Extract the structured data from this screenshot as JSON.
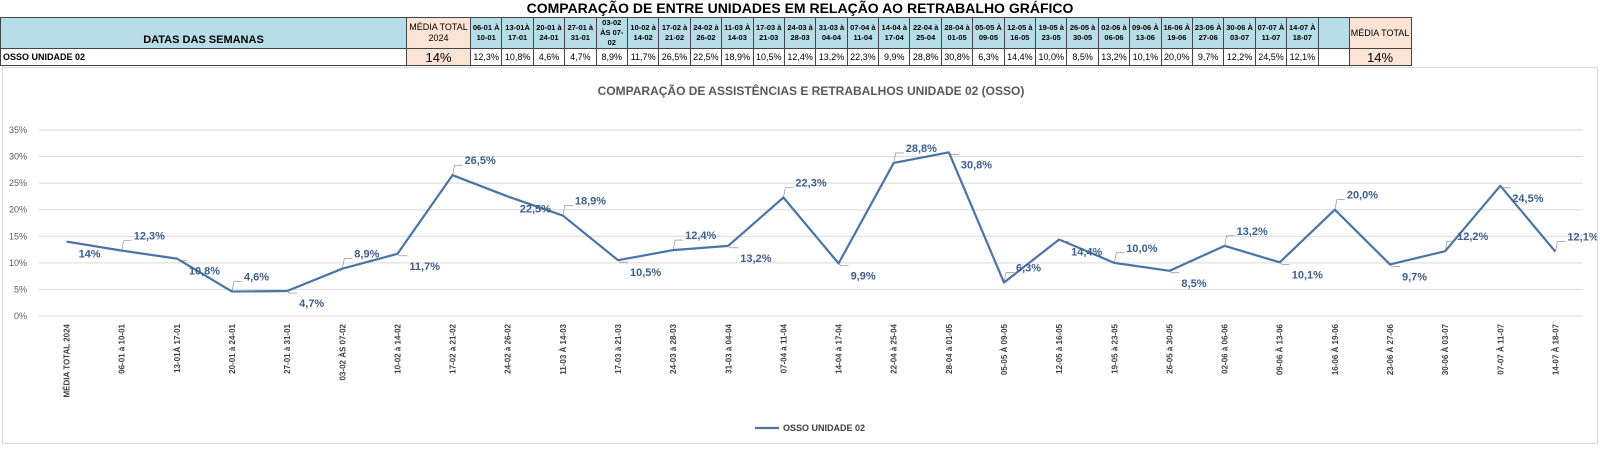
{
  "header": {
    "title": "COMPARAÇÃO DE ENTRE UNIDADES EM RELAÇÃO AO RETRABALHO GRÁFICO",
    "col_label": "DATAS DAS SEMANAS",
    "media_2024_label": "MÉDIA TOTAL 2024",
    "media_total_label": "MÉDIA TOTAL",
    "weeks": [
      "06-01 À 10-01",
      "13-01À 17-01",
      "20-01 à 24-01",
      "27-01 à 31-01",
      "03-02 ÀS 07-02",
      "10-02 à 14-02",
      "17-02 à 21-02",
      "24-02 à 26-02",
      "11-03 À 14-03",
      "17-03 à 21-03",
      "24-03 à 28-03",
      "31-03 à 04-04",
      "07-04 à 11-04",
      "14-04 à 17-04",
      "22-04 à 25-04",
      "28-04 à 01-05",
      "05-05 À 09-05",
      "12-05 à 16-05",
      "19-05 à 23-05",
      "26-05 à 30-05",
      "02-06 à 06-06",
      "09-06 À 13-06",
      "16-06 À 19-06",
      "23-06 À 27-06",
      "30-06 À 03-07",
      "07-07 À 11-07",
      "14-07 À 18-07"
    ]
  },
  "row": {
    "label": "OSSO UNIDADE 02",
    "media_2024": "14%",
    "values": [
      "12,3%",
      "10,8%",
      "4,6%",
      "4,7%",
      "8,9%",
      "11,7%",
      "26,5%",
      "22,5%",
      "18,9%",
      "10,5%",
      "12,4%",
      "13,2%",
      "22,3%",
      "9,9%",
      "28,8%",
      "30,8%",
      "6,3%",
      "14,4%",
      "10,0%",
      "8,5%",
      "13,2%",
      "10,1%",
      "20,0%",
      "9,7%",
      "12,2%",
      "24,5%",
      "12,1%"
    ],
    "media_total": "14%"
  },
  "chart_data": {
    "type": "line",
    "title": "COMPARAÇÃO DE ASSISTÊNCIAS E RETRABALHOS UNIDADE 02  (OSSO)",
    "categories": [
      "MÉDIA TOTAL 2024",
      "06-01 à 10-01",
      "13-01À 17-01",
      "20-01 à 24-01",
      "27-01 à 31-01",
      "03-02 ÀS 07-02",
      "10-02 à 14-02",
      "17-02 à 21-02",
      "24-02 à 26-02",
      "11-03 À 14-03",
      "17-03 à 21-03",
      "24-03 à 28-03",
      "31-03 à 04-04",
      "07-04 à 11-04",
      "14-04 à 17-04",
      "22-04 à 25-04",
      "28-04 à 01-05",
      "05-05 À 09-05",
      "12-05 à 16-05",
      "19-05 à 23-05",
      "26-05 à 30-05",
      "02-06 à 06-06",
      "09-06 À 13-06",
      "16-06 À 19-06",
      "23-06 À 27-06",
      "30-06 À 03-07",
      "07-07 À 11-07",
      "14-07 À 18-07"
    ],
    "series": [
      {
        "name": "OSSO UNIDADE 02",
        "values": [
          14,
          12.3,
          10.8,
          4.6,
          4.7,
          8.9,
          11.7,
          26.5,
          22.5,
          18.9,
          10.5,
          12.4,
          13.2,
          22.3,
          9.9,
          28.8,
          30.8,
          6.3,
          14.4,
          10.0,
          8.5,
          13.2,
          10.1,
          20.0,
          9.7,
          12.2,
          24.5,
          12.1
        ],
        "labels": [
          "14%",
          "12,3%",
          "10,8%",
          "4,6%",
          "4,7%",
          "8,9%",
          "11,7%",
          "26,5%",
          "22,5%",
          "18,9%",
          "10,5%",
          "12,4%",
          "13,2%",
          "22,3%",
          "9,9%",
          "28,8%",
          "30,8%",
          "6,3%",
          "14,4%",
          "10,0%",
          "8,5%",
          "13,2%",
          "10,1%",
          "20,0%",
          "9,7%",
          "12,2%",
          "24,5%",
          "12,1%"
        ],
        "color": "#4a74a6"
      }
    ],
    "yticks": [
      "0%",
      "5%",
      "10%",
      "15%",
      "20%",
      "25%",
      "30%",
      "35%"
    ],
    "ylim": [
      0,
      35
    ],
    "grid": true,
    "legend": "bottom"
  },
  "colors": {
    "header_blue": "#b7dde8",
    "header_peach": "#fbe4d5",
    "line": "#4a74a6",
    "label_text": "#3d5f8a"
  }
}
